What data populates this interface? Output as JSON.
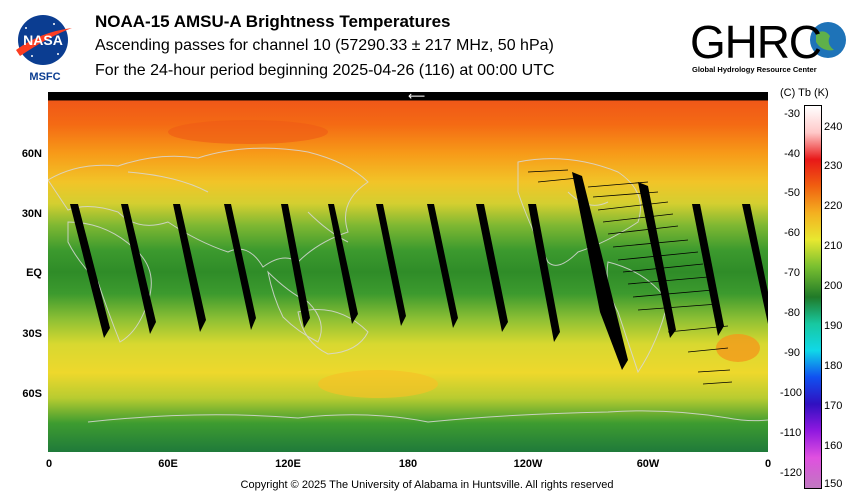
{
  "header": {
    "title": "NOAA-15 AMSU-A Brightness Temperatures",
    "subtitle": "Ascending passes for channel 10 (57290.33 ± 217 MHz, 50 hPa)",
    "period": "For the 24-hour period beginning 2025-04-26 (116) at 00:00 UTC"
  },
  "nasa_logo": {
    "text": "NASA",
    "caption": "MSFC",
    "blue": "#0b3d91",
    "red": "#fc3d21"
  },
  "ghrc_logo": {
    "text": "GHRC",
    "caption": "Global Hydrology Resource Center"
  },
  "map": {
    "lat_labels": [
      "60N",
      "30N",
      "EQ",
      "30S",
      "60S"
    ],
    "lon_labels": [
      "0",
      "60E",
      "120E",
      "180",
      "120W",
      "60W",
      "0"
    ],
    "date_line_marker": "⟵"
  },
  "scale": {
    "header": "(C)  Tb  (K)",
    "celsius": [
      "-30",
      "-40",
      "-50",
      "-60",
      "-70",
      "-80",
      "-90",
      "-100",
      "-110",
      "-120"
    ],
    "kelvin": [
      "240",
      "230",
      "220",
      "210",
      "200",
      "190",
      "180",
      "170",
      "160",
      "150"
    ]
  },
  "footer": {
    "copyright": "Copyright © 2025 The University of Alabama in Huntsville.  All rights reserved"
  }
}
